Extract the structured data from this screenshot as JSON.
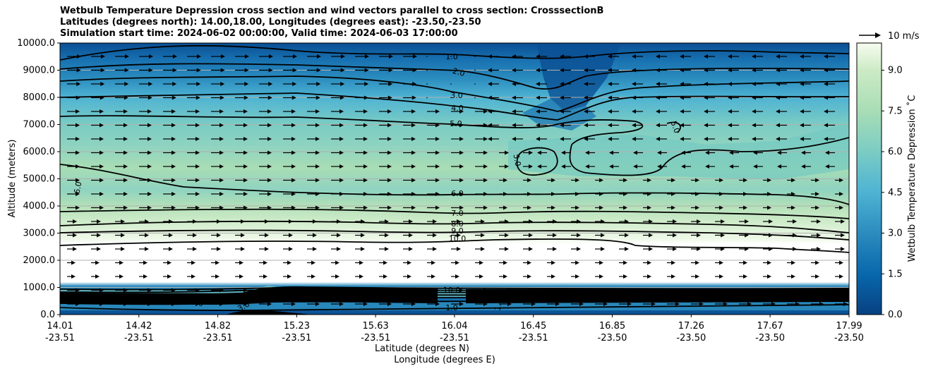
{
  "header": {
    "title_line1": "Wetbulb Temperature Depression cross section and wind vectors parallel to cross section: CrosssectionB",
    "title_line2": "Latitudes (degrees north): 14.00,18.00, Longitudes (degrees east): -23.50,-23.50",
    "title_line3": "Simulation start time: 2024-06-02 00:00:00, Valid time: 2024-06-03 17:00:00"
  },
  "chart_data": {
    "type": "heatmap",
    "title": "Wetbulb Temperature Depression cross section and wind vectors parallel to cross section: CrosssectionB",
    "ylabel": "Altitude (meters)",
    "xlabel_lat": "Latitude (degrees N)",
    "xlabel_lon": "Longitude (degrees E)",
    "ylim": [
      0,
      10000
    ],
    "y_ticks": [
      "0.0",
      "1000.0",
      "2000.0",
      "3000.0",
      "4000.0",
      "5000.0",
      "6000.0",
      "7000.0",
      "8000.0",
      "9000.0",
      "10000.0"
    ],
    "x_ticks": [
      {
        "lat": "14.01",
        "lon": "-23.51"
      },
      {
        "lat": "14.42",
        "lon": "-23.51"
      },
      {
        "lat": "14.82",
        "lon": "-23.51"
      },
      {
        "lat": "15.23",
        "lon": "-23.51"
      },
      {
        "lat": "15.63",
        "lon": "-23.51"
      },
      {
        "lat": "16.04",
        "lon": "-23.51"
      },
      {
        "lat": "16.45",
        "lon": "-23.51"
      },
      {
        "lat": "16.85",
        "lon": "-23.50"
      },
      {
        "lat": "17.26",
        "lon": "-23.50"
      },
      {
        "lat": "17.67",
        "lon": "-23.50"
      },
      {
        "lat": "17.99",
        "lon": "-23.50"
      }
    ],
    "grid": "horizontal",
    "colorbar": {
      "label": "Wetbulb Temperature Depression ˚C",
      "range": [
        0,
        10
      ],
      "ticks": [
        "0.0",
        "1.5",
        "3.0",
        "4.5",
        "6.0",
        "7.5",
        "9.0"
      ]
    },
    "contour_labels": [
      "1.0",
      "2.0",
      "3.0",
      "4.0",
      "5.0",
      "5.0",
      "5.0",
      "6.0",
      "6.0",
      "7.0",
      "8.0",
      "9.0",
      "10.0",
      "10.0",
      "1.0",
      "1.0",
      "4.0",
      "3.0"
    ],
    "wind_reference": "10 m/s",
    "wind_direction": {
      "lower_and_mid_levels": "northward",
      "upper_levels_north_half": "southward"
    }
  }
}
